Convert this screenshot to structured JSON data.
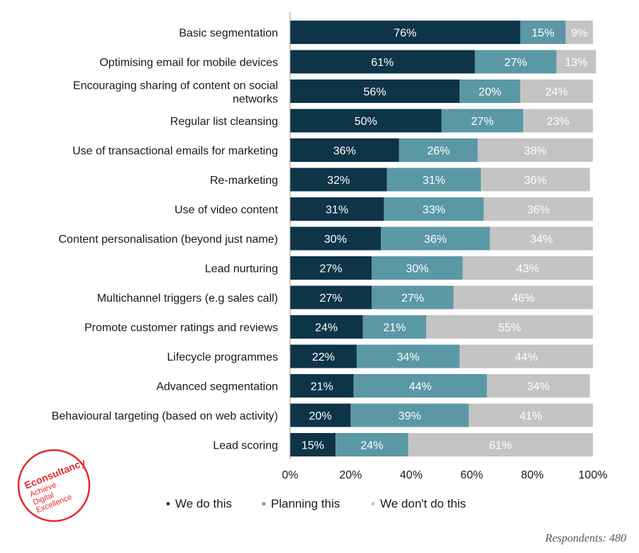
{
  "chart_data": {
    "type": "bar",
    "orientation": "horizontal",
    "stacked": true,
    "categories": [
      "Basic segmentation",
      "Optimising email for mobile devices",
      [
        "Encouraging sharing of content on social",
        "networks"
      ],
      "Regular list cleansing",
      "Use of transactional emails for marketing",
      "Re-marketing",
      "Use of video content",
      "Content personalisation (beyond just name)",
      "Lead nurturing",
      "Multichannel triggers (e.g sales call)",
      "Promote customer ratings and reviews",
      "Lifecycle programmes",
      "Advanced segmentation",
      "Behavioural targeting (based on web activity)",
      "Lead scoring"
    ],
    "series": [
      {
        "name": "We do this",
        "color": "#0e3448",
        "values": [
          76,
          61,
          56,
          50,
          36,
          32,
          31,
          30,
          27,
          27,
          24,
          22,
          21,
          20,
          15
        ]
      },
      {
        "name": "Planning this",
        "color": "#5b98a6",
        "values": [
          15,
          27,
          20,
          27,
          26,
          31,
          33,
          36,
          30,
          27,
          21,
          34,
          44,
          39,
          24
        ]
      },
      {
        "name": "We don't do this",
        "color": "#c4c4c4",
        "values": [
          9,
          13,
          24,
          23,
          38,
          36,
          36,
          34,
          43,
          46,
          55,
          44,
          34,
          41,
          61
        ]
      }
    ],
    "xlim": [
      0,
      100
    ],
    "xticks": [
      "0%",
      "20%",
      "40%",
      "60%",
      "80%",
      "100%"
    ],
    "legend_position": "bottom",
    "grid": false
  },
  "legend_markers": [
    "▪",
    "▪",
    "▪"
  ],
  "footer": {
    "respondents": "Respondents: 480"
  },
  "logo": {
    "lines": [
      "Econsultancy",
      "Achieve",
      "Digital",
      "Excellence"
    ]
  }
}
